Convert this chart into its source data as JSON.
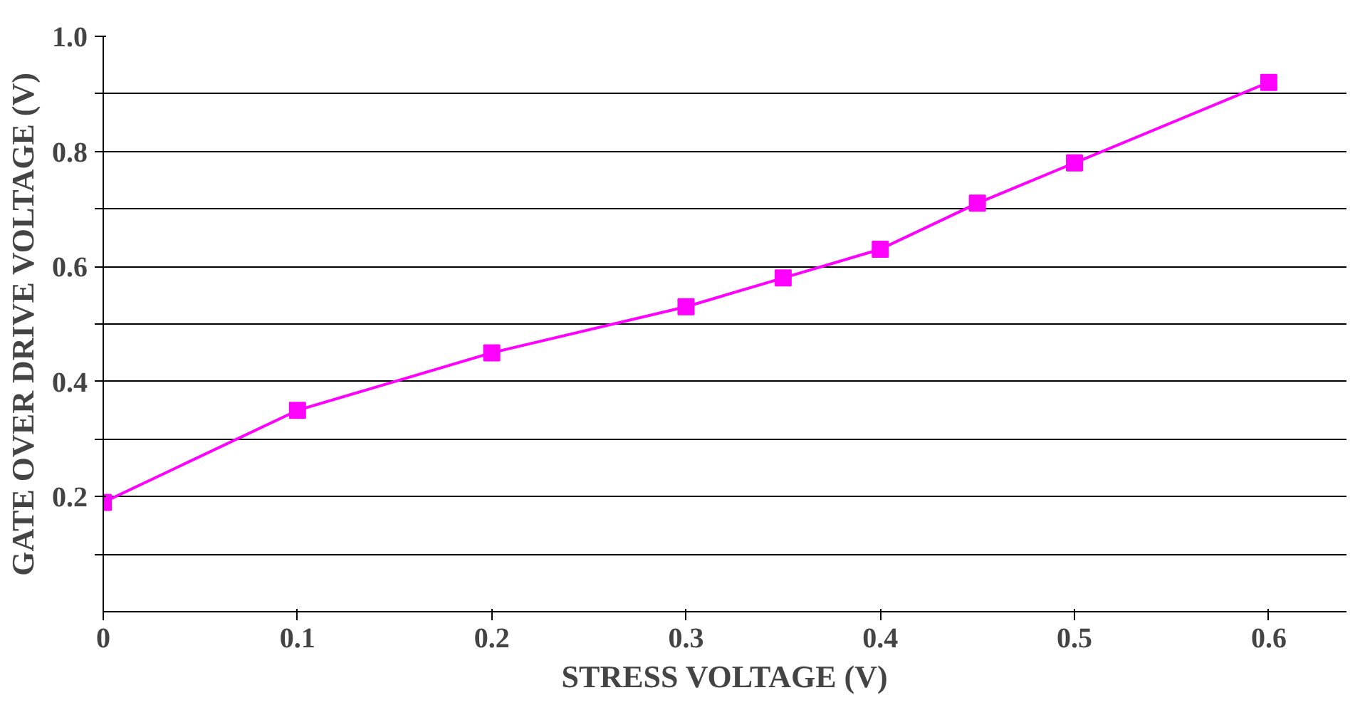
{
  "chart_data": {
    "type": "line",
    "xlabel": "STRESS VOLTAGE (V)",
    "ylabel": "GATE OVER DRIVE VOLTAGE (V)",
    "x": [
      0,
      0.1,
      0.2,
      0.3,
      0.35,
      0.4,
      0.45,
      0.5,
      0.6
    ],
    "series": [
      {
        "color": "#ff00ff",
        "values": [
          0.19,
          0.35,
          0.45,
          0.53,
          0.58,
          0.63,
          0.71,
          0.78,
          0.92
        ]
      }
    ],
    "xlim": [
      0,
      0.64
    ],
    "ylim": [
      0,
      1.0
    ],
    "xticks": [
      0,
      0.1,
      0.2,
      0.3,
      0.4,
      0.5,
      0.6
    ],
    "yticks": [
      {
        "value": 0.1,
        "label": null
      },
      0.2,
      {
        "value": 0.3,
        "label": null
      },
      0.4,
      {
        "value": 0.5,
        "label": null
      },
      0.6,
      {
        "value": 0.7,
        "label": null
      },
      0.8,
      {
        "value": 0.9,
        "label": null
      },
      {
        "value": 1.0,
        "label": "1.0"
      }
    ],
    "grid": "y",
    "marker": "square",
    "line_style": "solid"
  }
}
